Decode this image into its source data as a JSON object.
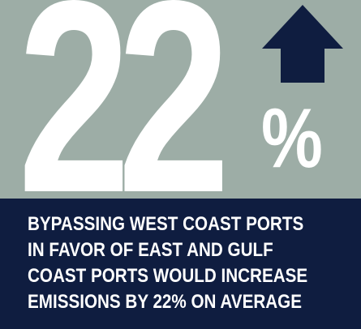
{
  "stat": {
    "number": "22",
    "unit": "%",
    "trend_icon": "up-arrow-icon",
    "trend_direction": "increase"
  },
  "caption": {
    "lines": [
      "BYPASSING WEST COAST PORTS",
      "IN FAVOR OF EAST AND GULF",
      "COAST PORTS WOULD INCREASE",
      "EMISSIONS BY 22% ON AVERAGE"
    ]
  },
  "colors": {
    "top_background": "#9dada6",
    "bottom_background": "#0f1d40",
    "arrow": "#0f1d40",
    "text": "#ffffff"
  }
}
